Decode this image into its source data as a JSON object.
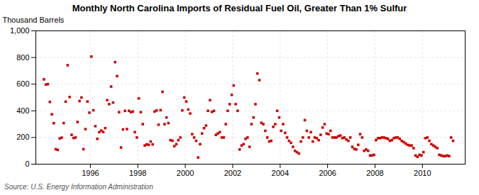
{
  "chart_data": {
    "type": "scatter",
    "title": "Monthly North Carolina Imports of Residual Fuel Oil, Greater Than 1% Sulfur",
    "ylabel": "Thousand Barrels",
    "source": "Source: U.S. Energy Information Administration",
    "color": "#cc0000",
    "marker": "square",
    "grid": true,
    "xlim": [
      1993.7,
      2011.8
    ],
    "xticks": [
      1996,
      1998,
      2000,
      2002,
      2004,
      2006,
      2008,
      2010
    ],
    "ylim": [
      0,
      1000
    ],
    "yticks": [
      0,
      200,
      400,
      600,
      800,
      {
        "value": 1000,
        "label": "1,000"
      }
    ],
    "x": [
      1994.0416666666667,
      1994.125,
      1994.2083333333333,
      1994.2916666666667,
      1994.375,
      1994.4583333333333,
      1994.5416666666667,
      1994.625,
      1994.7083333333333,
      1994.7916666666667,
      1994.875,
      1994.9583333333333,
      1995.0416666666667,
      1995.125,
      1995.2083333333333,
      1995.2916666666667,
      1995.375,
      1995.4583333333333,
      1995.5416666666667,
      1995.625,
      1995.7083333333333,
      1995.7916666666667,
      1995.875,
      1995.9583333333333,
      1996.0416666666667,
      1996.125,
      1996.2083333333333,
      1996.2916666666667,
      1996.375,
      1996.4583333333333,
      1996.5416666666667,
      1996.625,
      1996.7083333333333,
      1996.7916666666667,
      1996.875,
      1996.9583333333333,
      1997.0416666666667,
      1997.125,
      1997.2083333333333,
      1997.2916666666667,
      1997.375,
      1997.4583333333333,
      1997.5416666666667,
      1997.625,
      1997.7083333333333,
      1997.7916666666667,
      1997.875,
      1997.9583333333333,
      1998.0416666666667,
      1998.125,
      1998.2083333333333,
      1998.2916666666667,
      1998.375,
      1998.4583333333333,
      1998.5416666666667,
      1998.625,
      1998.7083333333333,
      1998.7916666666667,
      1998.875,
      1998.9583333333333,
      1999.0416666666667,
      1999.125,
      1999.2083333333333,
      1999.2916666666667,
      1999.375,
      1999.4583333333333,
      1999.5416666666667,
      1999.625,
      1999.7083333333333,
      1999.7916666666667,
      1999.875,
      1999.9583333333333,
      2000.0416666666667,
      2000.125,
      2000.2083333333333,
      2000.2916666666667,
      2000.375,
      2000.4583333333333,
      2000.5416666666667,
      2000.625,
      2000.7083333333333,
      2000.7916666666667,
      2000.875,
      2000.9583333333333,
      2001.0416666666667,
      2001.125,
      2001.2083333333333,
      2001.2916666666667,
      2001.375,
      2001.4583333333333,
      2001.5416666666667,
      2001.625,
      2001.7083333333333,
      2001.7916666666667,
      2001.875,
      2001.9583333333333,
      2002.0416666666667,
      2002.125,
      2002.2083333333333,
      2002.2916666666667,
      2002.375,
      2002.4583333333333,
      2002.5416666666667,
      2002.625,
      2002.7083333333333,
      2002.7916666666667,
      2002.875,
      2002.9583333333333,
      2003.0416666666667,
      2003.125,
      2003.2083333333333,
      2003.2916666666667,
      2003.375,
      2003.4583333333333,
      2003.5416666666667,
      2003.625,
      2003.7083333333333,
      2003.7916666666667,
      2003.875,
      2003.9583333333333,
      2004.0416666666667,
      2004.125,
      2004.2083333333333,
      2004.2916666666667,
      2004.375,
      2004.4583333333333,
      2004.5416666666667,
      2004.625,
      2004.7083333333333,
      2004.7916666666667,
      2004.875,
      2004.9583333333333,
      2005.0416666666667,
      2005.125,
      2005.2083333333333,
      2005.2916666666667,
      2005.375,
      2005.4583333333333,
      2005.5416666666667,
      2005.625,
      2005.7083333333333,
      2005.7916666666667,
      2005.875,
      2005.9583333333333,
      2006.0416666666667,
      2006.125,
      2006.2083333333333,
      2006.2916666666667,
      2006.375,
      2006.4583333333333,
      2006.5416666666667,
      2006.625,
      2006.7083333333333,
      2006.7916666666667,
      2006.875,
      2006.9583333333333,
      2007.0416666666667,
      2007.125,
      2007.2083333333333,
      2007.2916666666667,
      2007.375,
      2007.4583333333333,
      2007.5416666666667,
      2007.625,
      2007.7083333333333,
      2007.7916666666667,
      2007.875,
      2007.9583333333333,
      2008.0416666666667,
      2008.125,
      2008.2083333333333,
      2008.2916666666667,
      2008.375,
      2008.4583333333333,
      2008.5416666666667,
      2008.625,
      2008.7083333333333,
      2008.7916666666667,
      2008.875,
      2008.9583333333333,
      2009.0416666666667,
      2009.125,
      2009.2083333333333,
      2009.2916666666667,
      2009.375,
      2009.4583333333333,
      2009.5416666666667,
      2009.625,
      2009.7083333333333,
      2009.7916666666667,
      2009.875,
      2009.9583333333333,
      2010.0416666666667,
      2010.125,
      2010.2083333333333,
      2010.2916666666667,
      2010.375,
      2010.4583333333333,
      2010.5416666666667,
      2010.625,
      2010.7083333333333,
      2010.7916666666667,
      2010.875,
      2010.9583333333333,
      2011.0416666666667,
      2011.125,
      2011.2083333333333,
      2011.2916666666667
    ],
    "values": [
      636,
      597,
      600,
      467,
      374,
      307,
      112,
      107,
      193,
      199,
      308,
      469,
      742,
      504,
      220,
      196,
      200,
      316,
      473,
      500,
      112,
      263,
      470,
      386,
      807,
      404,
      285,
      190,
      240,
      252,
      241,
      270,
      480,
      450,
      582,
      462,
      765,
      660,
      390,
      125,
      260,
      400,
      263,
      400,
      390,
      395,
      240,
      200,
      493,
      390,
      300,
      140,
      148,
      145,
      170,
      148,
      395,
      403,
      296,
      405,
      543,
      300,
      350,
      308,
      180,
      176,
      135,
      150,
      180,
      200,
      403,
      500,
      470,
      410,
      380,
      225,
      200,
      175,
      50,
      150,
      230,
      270,
      290,
      400,
      480,
      392,
      400,
      220,
      230,
      240,
      200,
      200,
      300,
      400,
      450,
      520,
      590,
      450,
      400,
      110,
      140,
      150,
      190,
      200,
      130,
      300,
      350,
      450,
      680,
      630,
      310,
      300,
      250,
      200,
      170,
      175,
      280,
      300,
      400,
      350,
      250,
      300,
      235,
      200,
      175,
      160,
      130,
      100,
      90,
      80,
      170,
      200,
      330,
      250,
      200,
      240,
      170,
      200,
      195,
      180,
      220,
      275,
      300,
      230,
      225,
      250,
      200,
      200,
      200,
      210,
      215,
      195,
      200,
      185,
      175,
      200,
      130,
      115,
      110,
      145,
      225,
      200,
      100,
      110,
      100,
      65,
      65,
      70,
      180,
      195,
      195,
      200,
      200,
      195,
      190,
      175,
      180,
      195,
      200,
      200,
      190,
      175,
      165,
      155,
      145,
      140,
      140,
      120,
      65,
      55,
      70,
      65,
      90,
      195,
      200,
      175,
      150,
      140,
      130,
      120,
      70,
      65,
      60,
      60,
      65,
      60,
      200,
      175
    ]
  }
}
